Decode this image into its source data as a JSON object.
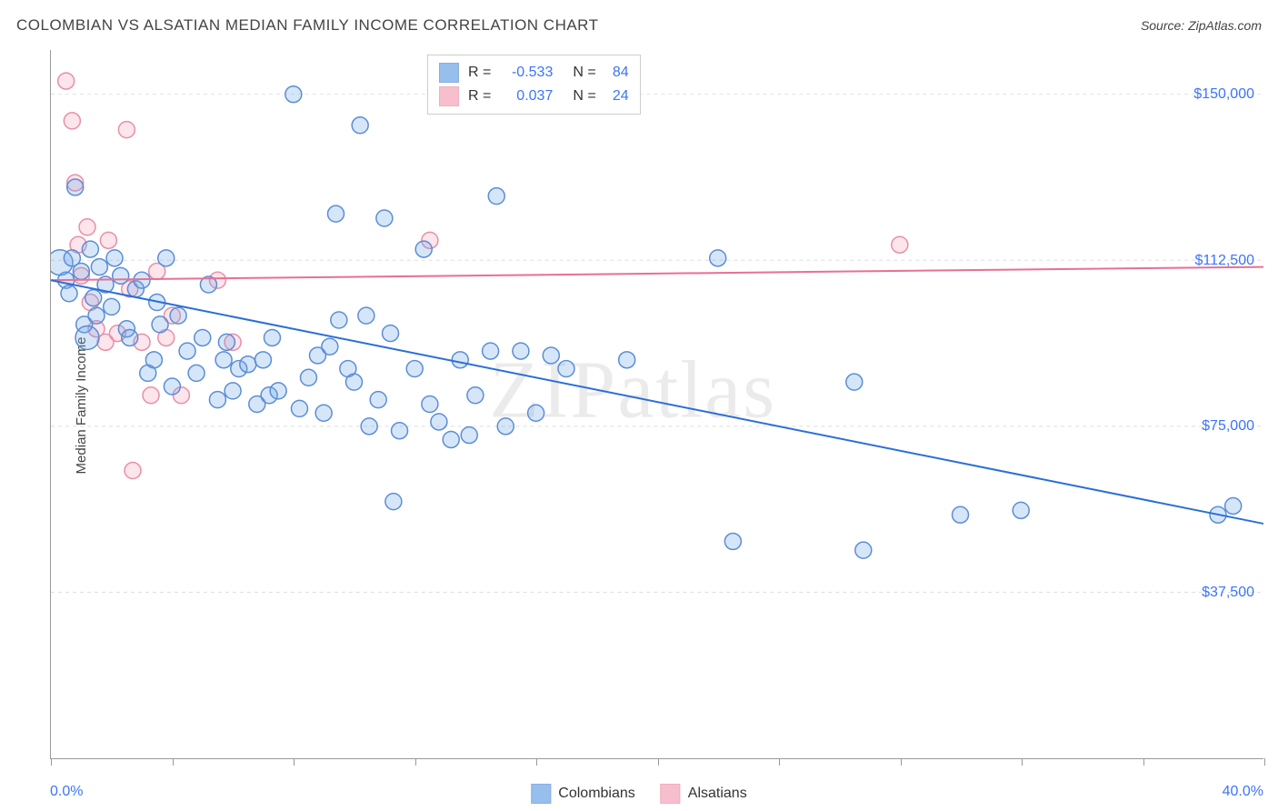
{
  "title": "COLOMBIAN VS ALSATIAN MEDIAN FAMILY INCOME CORRELATION CHART",
  "source": "Source: ZipAtlas.com",
  "watermark": "ZIPatlas",
  "ylabel": "Median Family Income",
  "chart": {
    "type": "scatter",
    "xlim": [
      0,
      40
    ],
    "ylim": [
      0,
      160000
    ],
    "x_tick_step": 4,
    "y_ticks": [
      37500,
      75000,
      112500,
      150000
    ],
    "y_tick_labels": [
      "$37,500",
      "$75,000",
      "$112,500",
      "$150,000"
    ],
    "x_min_label": "0.0%",
    "x_max_label": "40.0%",
    "grid_color": "#dddddd",
    "axis_color": "#999999",
    "background_color": "#ffffff",
    "marker_radius": 9,
    "marker_stroke_width": 1.5,
    "marker_fill_opacity": 0.28,
    "line_width": 2
  },
  "series": {
    "colombians": {
      "label": "Colombians",
      "fill": "#6ca4e8",
      "stroke": "#5b8dd6",
      "line_color": "#2a6fd6",
      "R": "-0.533",
      "N": "84",
      "trendline": {
        "x1": 0,
        "y1": 108000,
        "x2": 40,
        "y2": 53000
      },
      "points": [
        {
          "x": 0.3,
          "y": 112000,
          "r": 14
        },
        {
          "x": 0.5,
          "y": 108000
        },
        {
          "x": 0.6,
          "y": 105000
        },
        {
          "x": 0.7,
          "y": 113000
        },
        {
          "x": 0.8,
          "y": 129000
        },
        {
          "x": 1.0,
          "y": 110000
        },
        {
          "x": 1.1,
          "y": 98000
        },
        {
          "x": 1.2,
          "y": 95000,
          "r": 13
        },
        {
          "x": 1.3,
          "y": 115000
        },
        {
          "x": 1.4,
          "y": 104000
        },
        {
          "x": 1.5,
          "y": 100000
        },
        {
          "x": 1.6,
          "y": 111000
        },
        {
          "x": 1.8,
          "y": 107000
        },
        {
          "x": 2.0,
          "y": 102000
        },
        {
          "x": 2.1,
          "y": 113000
        },
        {
          "x": 2.3,
          "y": 109000
        },
        {
          "x": 2.5,
          "y": 97000
        },
        {
          "x": 2.6,
          "y": 95000
        },
        {
          "x": 2.8,
          "y": 106000
        },
        {
          "x": 3.0,
          "y": 108000
        },
        {
          "x": 3.2,
          "y": 87000
        },
        {
          "x": 3.4,
          "y": 90000
        },
        {
          "x": 3.5,
          "y": 103000
        },
        {
          "x": 3.6,
          "y": 98000
        },
        {
          "x": 3.8,
          "y": 113000
        },
        {
          "x": 4.0,
          "y": 84000
        },
        {
          "x": 4.2,
          "y": 100000
        },
        {
          "x": 4.5,
          "y": 92000
        },
        {
          "x": 4.8,
          "y": 87000
        },
        {
          "x": 5.0,
          "y": 95000
        },
        {
          "x": 5.2,
          "y": 107000
        },
        {
          "x": 5.5,
          "y": 81000
        },
        {
          "x": 5.7,
          "y": 90000
        },
        {
          "x": 5.8,
          "y": 94000
        },
        {
          "x": 6.0,
          "y": 83000
        },
        {
          "x": 6.2,
          "y": 88000
        },
        {
          "x": 6.5,
          "y": 89000
        },
        {
          "x": 6.8,
          "y": 80000
        },
        {
          "x": 7.0,
          "y": 90000
        },
        {
          "x": 7.2,
          "y": 82000
        },
        {
          "x": 7.3,
          "y": 95000
        },
        {
          "x": 7.5,
          "y": 83000
        },
        {
          "x": 8.0,
          "y": 150000
        },
        {
          "x": 8.2,
          "y": 79000
        },
        {
          "x": 8.5,
          "y": 86000
        },
        {
          "x": 8.8,
          "y": 91000
        },
        {
          "x": 9.0,
          "y": 78000
        },
        {
          "x": 9.2,
          "y": 93000
        },
        {
          "x": 9.4,
          "y": 123000
        },
        {
          "x": 9.5,
          "y": 99000
        },
        {
          "x": 9.8,
          "y": 88000
        },
        {
          "x": 10.0,
          "y": 85000
        },
        {
          "x": 10.2,
          "y": 143000
        },
        {
          "x": 10.4,
          "y": 100000
        },
        {
          "x": 10.5,
          "y": 75000
        },
        {
          "x": 10.8,
          "y": 81000
        },
        {
          "x": 11.0,
          "y": 122000
        },
        {
          "x": 11.2,
          "y": 96000
        },
        {
          "x": 11.3,
          "y": 58000
        },
        {
          "x": 11.5,
          "y": 74000
        },
        {
          "x": 12.0,
          "y": 88000
        },
        {
          "x": 12.3,
          "y": 115000
        },
        {
          "x": 12.5,
          "y": 80000
        },
        {
          "x": 12.8,
          "y": 76000
        },
        {
          "x": 13.2,
          "y": 72000
        },
        {
          "x": 13.5,
          "y": 90000
        },
        {
          "x": 13.8,
          "y": 73000
        },
        {
          "x": 14.0,
          "y": 82000
        },
        {
          "x": 14.5,
          "y": 92000
        },
        {
          "x": 14.7,
          "y": 127000
        },
        {
          "x": 15.0,
          "y": 75000
        },
        {
          "x": 15.5,
          "y": 92000
        },
        {
          "x": 16.0,
          "y": 78000
        },
        {
          "x": 16.5,
          "y": 91000
        },
        {
          "x": 17.0,
          "y": 88000
        },
        {
          "x": 19.0,
          "y": 90000
        },
        {
          "x": 22.0,
          "y": 113000
        },
        {
          "x": 22.5,
          "y": 49000
        },
        {
          "x": 26.5,
          "y": 85000
        },
        {
          "x": 26.8,
          "y": 47000
        },
        {
          "x": 30.0,
          "y": 55000
        },
        {
          "x": 32.0,
          "y": 56000
        },
        {
          "x": 38.5,
          "y": 55000
        },
        {
          "x": 39.0,
          "y": 57000
        }
      ]
    },
    "alsatians": {
      "label": "Alsatians",
      "fill": "#f5a3b8",
      "stroke": "#e88fa6",
      "line_color": "#e96f93",
      "R": "0.037",
      "N": "24",
      "trendline": {
        "x1": 0,
        "y1": 108000,
        "x2": 40,
        "y2": 111000
      },
      "points": [
        {
          "x": 0.5,
          "y": 153000
        },
        {
          "x": 0.7,
          "y": 144000
        },
        {
          "x": 0.8,
          "y": 130000
        },
        {
          "x": 0.9,
          "y": 116000
        },
        {
          "x": 1.0,
          "y": 109000
        },
        {
          "x": 1.2,
          "y": 120000
        },
        {
          "x": 1.3,
          "y": 103000
        },
        {
          "x": 1.5,
          "y": 97000
        },
        {
          "x": 1.8,
          "y": 94000
        },
        {
          "x": 1.9,
          "y": 117000
        },
        {
          "x": 2.2,
          "y": 96000
        },
        {
          "x": 2.5,
          "y": 142000
        },
        {
          "x": 2.6,
          "y": 106000
        },
        {
          "x": 2.7,
          "y": 65000
        },
        {
          "x": 3.0,
          "y": 94000
        },
        {
          "x": 3.3,
          "y": 82000
        },
        {
          "x": 3.5,
          "y": 110000
        },
        {
          "x": 3.8,
          "y": 95000
        },
        {
          "x": 4.0,
          "y": 100000
        },
        {
          "x": 4.3,
          "y": 82000
        },
        {
          "x": 5.5,
          "y": 108000
        },
        {
          "x": 6.0,
          "y": 94000
        },
        {
          "x": 12.5,
          "y": 117000
        },
        {
          "x": 28.0,
          "y": 116000
        }
      ]
    }
  },
  "colors": {
    "title_text": "#444444",
    "label_text": "#444444",
    "value_text": "#3b74ff"
  }
}
